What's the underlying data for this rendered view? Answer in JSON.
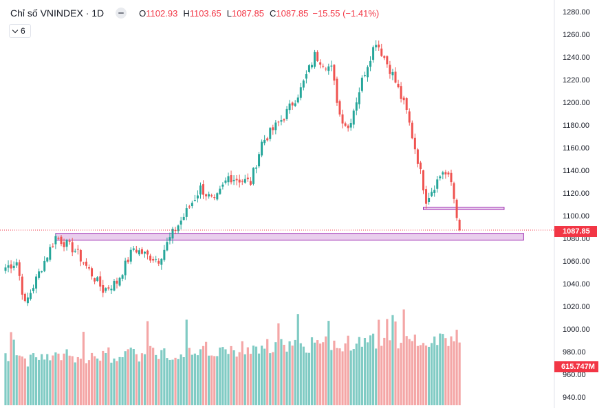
{
  "header": {
    "symbol_title": "Chỉ số VNINDEX · 1D",
    "open_label": "O",
    "open_value": "1102.93",
    "high_label": "H",
    "high_value": "1103.65",
    "low_label": "L",
    "low_value": "1087.85",
    "close_label": "C",
    "close_value": "1087.85",
    "change": "−15.55 (−1.41%)"
  },
  "indicators_button": {
    "count": "6"
  },
  "last_price_label": "1087.85",
  "last_volume_label": "615.747M",
  "colors": {
    "up": "#26a69a",
    "down": "#ef5350",
    "vol_up": "#80cbc4",
    "vol_down": "#f4a6a6",
    "zone_fill": "#e1bee7",
    "zone_border": "#9c27b0",
    "price_tag": "#f23645"
  },
  "chart_data": {
    "type": "candlestick",
    "y_axis": {
      "min": 940,
      "max": 1280,
      "step": 20,
      "ticks": [
        "1280.00",
        "1260.00",
        "1240.00",
        "1220.00",
        "1200.00",
        "1180.00",
        "1160.00",
        "1140.00",
        "1120.00",
        "1100.00",
        "1080.00",
        "1060.00",
        "1040.00",
        "1020.00",
        "1000.00",
        "980.00",
        "960.00",
        "940.00"
      ]
    },
    "last_price": 1087.85,
    "zones": [
      {
        "from_bar": 18,
        "to_bar": 186,
        "low": 1079,
        "high": 1085
      },
      {
        "from_bar": 150,
        "to_bar": 179,
        "low": 1106,
        "high": 1108
      }
    ],
    "anchors": [
      [
        0,
        1055
      ],
      [
        4,
        1060
      ],
      [
        7,
        1022
      ],
      [
        12,
        1050
      ],
      [
        18,
        1082
      ],
      [
        25,
        1070
      ],
      [
        35,
        1035
      ],
      [
        40,
        1042
      ],
      [
        46,
        1072
      ],
      [
        51,
        1065
      ],
      [
        55,
        1062
      ],
      [
        60,
        1085
      ],
      [
        64,
        1100
      ],
      [
        70,
        1125
      ],
      [
        75,
        1112
      ],
      [
        80,
        1135
      ],
      [
        88,
        1130
      ],
      [
        92,
        1165
      ],
      [
        100,
        1188
      ],
      [
        106,
        1212
      ],
      [
        111,
        1242
      ],
      [
        117,
        1230
      ],
      [
        120,
        1190
      ],
      [
        123,
        1178
      ],
      [
        129,
        1228
      ],
      [
        133,
        1255
      ],
      [
        139,
        1225
      ],
      [
        144,
        1192
      ],
      [
        148,
        1150
      ],
      [
        151,
        1115
      ],
      [
        157,
        1140
      ],
      [
        160,
        1130
      ],
      [
        163,
        1088
      ]
    ],
    "candle_count": 164,
    "volume": {
      "min": 0,
      "max": 1000
    }
  }
}
